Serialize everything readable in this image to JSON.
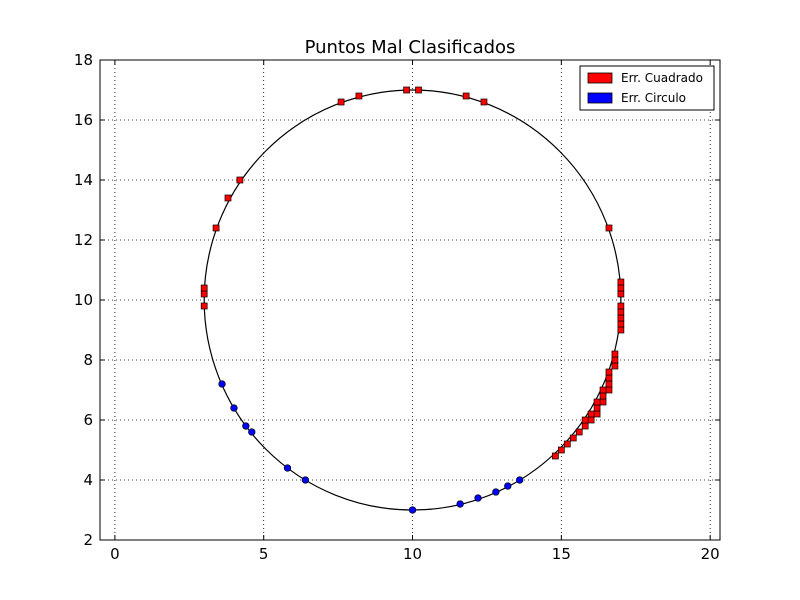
{
  "chart_data": {
    "type": "scatter",
    "title": "Puntos Mal Clasificados",
    "xlabel": "",
    "ylabel": "",
    "xlim": [
      -0.5,
      20.33
    ],
    "ylim": [
      2,
      18
    ],
    "xticks": [
      0,
      5,
      10,
      15,
      20
    ],
    "yticks": [
      2,
      4,
      6,
      8,
      10,
      12,
      14,
      16,
      18
    ],
    "grid": true,
    "legend_position": "top-right",
    "circle": {
      "center": [
        10,
        10
      ],
      "radius": 7,
      "color": "#000000"
    },
    "series": [
      {
        "name": "Err. Cuadrado",
        "marker": "square",
        "color": "#ff0000",
        "points": [
          [
            3.0,
            9.8
          ],
          [
            3.0,
            10.2
          ],
          [
            3.0,
            10.4
          ],
          [
            3.4,
            12.4
          ],
          [
            3.8,
            13.4
          ],
          [
            4.2,
            14.0
          ],
          [
            7.6,
            16.6
          ],
          [
            8.2,
            16.8
          ],
          [
            9.8,
            17.0
          ],
          [
            10.2,
            17.0
          ],
          [
            11.8,
            16.8
          ],
          [
            12.4,
            16.6
          ],
          [
            16.6,
            12.4
          ],
          [
            17.0,
            9.0
          ],
          [
            17.0,
            9.2
          ],
          [
            17.0,
            9.4
          ],
          [
            17.0,
            9.6
          ],
          [
            17.0,
            9.8
          ],
          [
            17.0,
            10.2
          ],
          [
            17.0,
            10.4
          ],
          [
            17.0,
            10.6
          ],
          [
            16.8,
            7.8
          ],
          [
            16.8,
            8.0
          ],
          [
            16.8,
            8.2
          ],
          [
            16.6,
            7.0
          ],
          [
            16.6,
            7.2
          ],
          [
            16.6,
            7.4
          ],
          [
            16.6,
            7.6
          ],
          [
            16.4,
            6.6
          ],
          [
            16.4,
            6.8
          ],
          [
            16.4,
            7.0
          ],
          [
            16.2,
            6.2
          ],
          [
            16.2,
            6.4
          ],
          [
            16.2,
            6.6
          ],
          [
            16.0,
            6.0
          ],
          [
            16.0,
            6.2
          ],
          [
            15.8,
            5.8
          ],
          [
            15.8,
            6.0
          ],
          [
            15.6,
            5.6
          ],
          [
            15.4,
            5.4
          ],
          [
            15.2,
            5.2
          ],
          [
            15.0,
            5.0
          ],
          [
            14.8,
            4.8
          ]
        ]
      },
      {
        "name": "Err. Circulo",
        "marker": "circle",
        "color": "#0000ff",
        "points": [
          [
            3.6,
            7.2
          ],
          [
            4.0,
            6.4
          ],
          [
            4.4,
            5.8
          ],
          [
            4.6,
            5.6
          ],
          [
            5.8,
            4.4
          ],
          [
            6.4,
            4.0
          ],
          [
            10.0,
            3.0
          ],
          [
            11.6,
            3.2
          ],
          [
            12.2,
            3.4
          ],
          [
            12.8,
            3.6
          ],
          [
            13.2,
            3.8
          ],
          [
            13.6,
            4.0
          ]
        ]
      }
    ]
  }
}
